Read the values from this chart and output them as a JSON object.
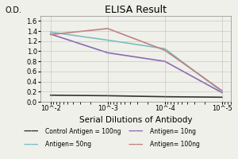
{
  "title": "ELISA Result",
  "xlabel": "Serial Dilutions of Antibody",
  "ylabel": "O.D.",
  "x_ticks": [
    0.01,
    0.001,
    0.0001,
    1e-05
  ],
  "x_tick_labels": [
    "10^-2",
    "10^-3",
    "10^-4",
    "10^-5"
  ],
  "ylim": [
    0,
    1.7
  ],
  "yticks": [
    0,
    0.2,
    0.4,
    0.6,
    0.8,
    1.0,
    1.2,
    1.4,
    1.6
  ],
  "series": [
    {
      "label": "Control Antigen = 100ng",
      "color": "#333333",
      "linewidth": 1.2,
      "values": [
        0.13,
        0.12,
        0.1,
        0.09
      ]
    },
    {
      "label": "Antigen= 10ng",
      "color": "#8B6BB1",
      "linewidth": 1.2,
      "values": [
        1.34,
        0.97,
        0.8,
        0.18
      ]
    },
    {
      "label": "Antigen= 50ng",
      "color": "#7ABFBF",
      "linewidth": 1.2,
      "values": [
        1.38,
        1.22,
        1.05,
        0.2
      ]
    },
    {
      "label": "Antigen= 100ng",
      "color": "#C08080",
      "linewidth": 1.2,
      "values": [
        1.33,
        1.45,
        1.02,
        0.22
      ]
    }
  ],
  "legend_entries": [
    {
      "label": "Control Antigen = 100ng",
      "color": "#333333"
    },
    {
      "label": "Antigen= 10ng",
      "color": "#8B6BB1"
    },
    {
      "label": "Antigen= 50ng",
      "color": "#7ABFBF"
    },
    {
      "label": "Antigen= 100ng",
      "color": "#C08080"
    }
  ],
  "background_color": "#f0f0eb",
  "title_fontsize": 9,
  "ylabel_fontsize": 7,
  "tick_fontsize": 6,
  "legend_fontsize": 5.5,
  "xlabel_fontsize": 7.5
}
